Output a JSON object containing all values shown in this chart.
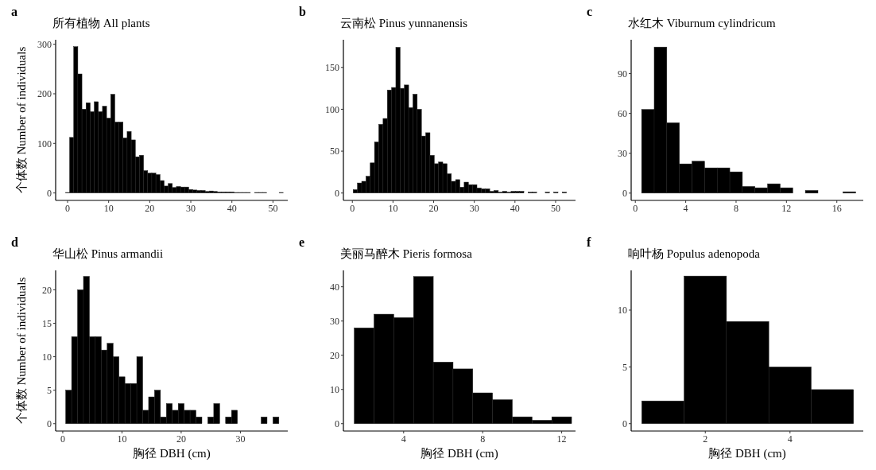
{
  "chart_data": [
    {
      "type": "histogram",
      "title": "所有植物 All plants",
      "ylabel": "个体数 Number of individuals",
      "annotations": [
        "a"
      ],
      "bins": [
        -0.5,
        0.5,
        1.5,
        2.5,
        3.5,
        4.5,
        5.5,
        6.5,
        7.5,
        8.5,
        9.5,
        10.5,
        11.5,
        12.5,
        13.5,
        14.5,
        15.5,
        16.5,
        17.5,
        18.5,
        19.5,
        20.5,
        21.5,
        22.5,
        23.5,
        24.5,
        25.5,
        26.5,
        27.5,
        28.5,
        29.5,
        30.5,
        31.5,
        32.5,
        33.5,
        34.5,
        35.5,
        36.5,
        37.5,
        38.5,
        39.5,
        40.5,
        41.5,
        42.5,
        43.5,
        44.5,
        45.5,
        46.5,
        47.5,
        48.5,
        49.5,
        50.5,
        51.5,
        52.5
      ],
      "values": [
        1,
        112,
        295,
        240,
        169,
        182,
        164,
        184,
        164,
        175,
        151,
        199,
        143,
        143,
        111,
        124,
        107,
        73,
        76,
        45,
        40,
        40,
        37,
        25,
        14,
        19,
        11,
        13,
        12,
        12,
        7,
        6,
        5,
        5,
        3,
        4,
        3,
        2,
        2,
        2,
        2,
        1,
        1,
        1,
        1,
        0,
        1,
        1,
        1,
        0,
        0,
        0,
        1
      ],
      "color": "#000000",
      "xlim": [
        -2.9,
        53.6
      ],
      "ylim": [
        -15,
        309
      ],
      "xticks": [
        0,
        10,
        20,
        30,
        40,
        50
      ],
      "yticks": [
        0,
        100,
        200,
        300
      ],
      "grid": false
    },
    {
      "type": "histogram",
      "title": "云南松 Pinus yunnanensis",
      "annotations": [
        "b"
      ],
      "bins": [
        0.2,
        1.25,
        2.3,
        3.35,
        4.4,
        5.45,
        6.5,
        7.55,
        8.6,
        9.65,
        10.7,
        11.75,
        12.8,
        13.85,
        14.9,
        15.95,
        17,
        18.05,
        19.1,
        20.15,
        21.2,
        22.25,
        23.3,
        24.35,
        25.4,
        26.45,
        27.5,
        28.55,
        29.6,
        30.65,
        31.7,
        32.75,
        33.8,
        34.85,
        35.9,
        36.95,
        38,
        39.05,
        40.1,
        41.15,
        42.2,
        43.25,
        44.3,
        45.35,
        46.4,
        47.45,
        48.5,
        49.55,
        50.6,
        51.65,
        52.7
      ],
      "values": [
        4,
        12,
        14,
        20,
        36,
        61,
        82,
        89,
        123,
        126,
        174,
        125,
        129,
        102,
        118,
        100,
        68,
        72,
        45,
        35,
        37,
        35,
        23,
        14,
        16,
        7,
        13,
        10,
        10,
        6,
        5,
        5,
        2,
        3,
        1,
        2,
        1,
        2,
        2,
        2,
        0,
        1,
        1,
        0,
        0,
        1,
        0,
        1,
        0,
        1
      ],
      "color": "#000000",
      "xlim": [
        -2.2,
        54.9
      ],
      "ylim": [
        -8.8,
        183
      ],
      "xticks": [
        0,
        10,
        20,
        30,
        40,
        50
      ],
      "yticks": [
        0,
        50,
        100,
        150
      ],
      "grid": false
    },
    {
      "type": "histogram",
      "title": "水红木 Viburnum cylindricum",
      "annotations": [
        "c"
      ],
      "bins": [
        0.5,
        1.5,
        2.5,
        3.5,
        4.5,
        5.5,
        6.5,
        7.5,
        8.5,
        9.5,
        10.5,
        11.5,
        12.5,
        13.5,
        14.5,
        15.5,
        16.5,
        17.5
      ],
      "values": [
        63,
        110,
        53,
        22,
        24,
        19,
        19,
        16,
        5,
        4,
        7,
        4,
        0,
        2,
        0,
        0,
        1
      ],
      "color": "#000000",
      "xlim": [
        -0.33,
        18.1
      ],
      "ylim": [
        -5.5,
        115.5
      ],
      "xticks": [
        0,
        4,
        8,
        12,
        16
      ],
      "yticks": [
        0,
        30,
        60,
        90
      ],
      "grid": false
    },
    {
      "type": "histogram",
      "title": "华山松 Pinus armandii",
      "xlabel": "胸径 DBH (cm)",
      "ylabel": "个体数 Number of individuals",
      "annotations": [
        "d"
      ],
      "bins": [
        0.5,
        1.5,
        2.5,
        3.5,
        4.5,
        5.5,
        6.5,
        7.5,
        8.5,
        9.5,
        10.5,
        11.5,
        12.5,
        13.5,
        14.5,
        15.5,
        16.5,
        17.5,
        18.5,
        19.5,
        20.5,
        21.5,
        22.5,
        23.5,
        24.5,
        25.5,
        26.5,
        27.5,
        28.5,
        29.5,
        30.5,
        31.5,
        32.5,
        33.5,
        34.5,
        35.5,
        36.5
      ],
      "values": [
        5,
        13,
        20,
        22,
        13,
        13,
        11,
        12,
        10,
        7,
        6,
        6,
        10,
        2,
        4,
        5,
        1,
        3,
        2,
        3,
        2,
        2,
        1,
        0,
        1,
        3,
        0,
        1,
        2,
        0,
        0,
        0,
        0,
        1,
        0,
        1
      ],
      "color": "#000000",
      "xlim": [
        -1.2,
        38
      ],
      "ylim": [
        -1.1,
        22.9
      ],
      "xticks": [
        0,
        10,
        20,
        30
      ],
      "yticks": [
        0,
        5,
        10,
        15,
        20
      ],
      "grid": false
    },
    {
      "type": "histogram",
      "title": "美丽马醉木 Pieris formosa",
      "xlabel": "胸径 DBH (cm)",
      "annotations": [
        "e"
      ],
      "bins": [
        1.5,
        2.5,
        3.5,
        4.5,
        5.5,
        6.5,
        7.5,
        8.5,
        9.5,
        10.5,
        11.5,
        12.5
      ],
      "values": [
        28,
        32,
        31,
        43,
        18,
        16,
        9,
        7,
        2,
        1,
        2
      ],
      "color": "#000000",
      "xlim": [
        0.95,
        12.7
      ],
      "ylim": [
        -2.15,
        44.8
      ],
      "xticks": [
        4,
        8,
        12
      ],
      "yticks": [
        0,
        10,
        20,
        30,
        40
      ],
      "grid": false
    },
    {
      "type": "histogram",
      "title": "响叶杨 Populus adenopoda",
      "xlabel": "胸径 DBH (cm)",
      "annotations": [
        "f"
      ],
      "bins": [
        0.5,
        1.5,
        2.5,
        3.5,
        4.5,
        5.5
      ],
      "values": [
        2,
        13,
        9,
        5,
        3
      ],
      "color": "#000000",
      "xlim": [
        0.25,
        5.73
      ],
      "ylim": [
        -0.65,
        13.5
      ],
      "xticks": [
        2,
        4
      ],
      "yticks": [
        0,
        5,
        10
      ],
      "grid": false
    }
  ]
}
